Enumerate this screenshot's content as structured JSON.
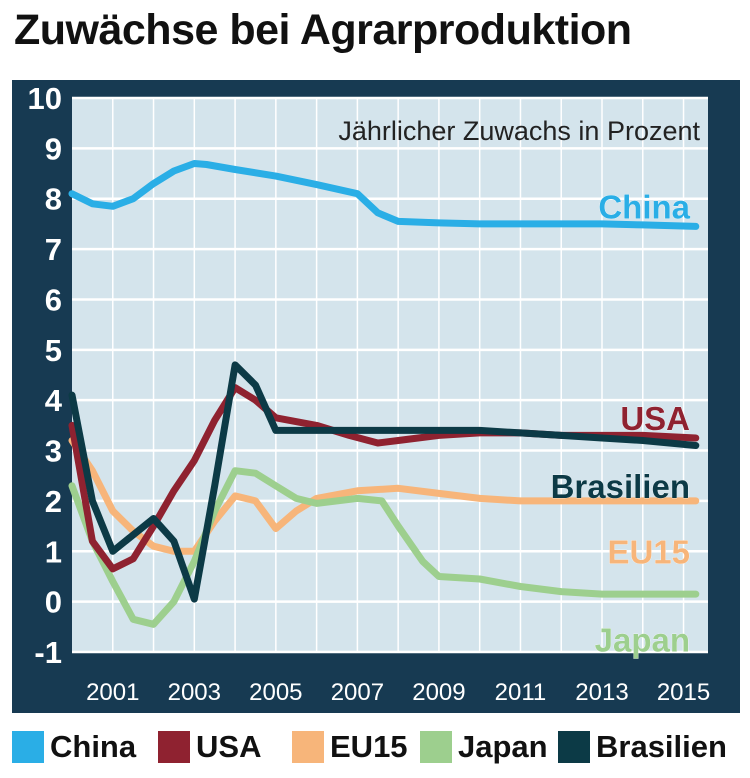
{
  "title": "Zuwächse bei Agrarproduktion",
  "colors": {
    "frame": "#173a52",
    "plot_bg": "#d4e4ec",
    "grid": "#ffffff"
  },
  "chart_data": {
    "type": "line",
    "subtitle": "Jährlicher Zuwachs in Prozent",
    "xlabel": "",
    "ylabel": "",
    "ylim": [
      -1,
      10
    ],
    "xlim": [
      2000,
      2015.6
    ],
    "yticks": [
      "-1",
      "0",
      "1",
      "2",
      "3",
      "4",
      "5",
      "6",
      "7",
      "8",
      "9",
      "10"
    ],
    "xticks": [
      "2001",
      "2003",
      "2005",
      "2007",
      "2009",
      "2011",
      "2013",
      "2015"
    ],
    "grid": true,
    "legend_position": "bottom",
    "series": [
      {
        "name": "China",
        "color": "#2aaee6",
        "x": [
          2000,
          2000.5,
          2001,
          2001.5,
          2002,
          2002.5,
          2003,
          2003.3,
          2004,
          2005,
          2006,
          2007,
          2007.5,
          2008,
          2009,
          2010,
          2011,
          2012,
          2013,
          2014,
          2015.3
        ],
        "y": [
          8.1,
          7.9,
          7.85,
          8.0,
          8.3,
          8.55,
          8.7,
          8.68,
          8.58,
          8.45,
          8.28,
          8.1,
          7.72,
          7.55,
          7.52,
          7.5,
          7.5,
          7.5,
          7.5,
          7.48,
          7.45
        ]
      },
      {
        "name": "USA",
        "color": "#8f2230",
        "x": [
          2000,
          2000.5,
          2001,
          2001.5,
          2002,
          2002.5,
          2003,
          2003.5,
          2004,
          2004.5,
          2005,
          2006,
          2006.8,
          2007.5,
          2008,
          2009,
          2010,
          2011,
          2012,
          2013,
          2014,
          2015.3
        ],
        "y": [
          3.5,
          1.2,
          0.65,
          0.85,
          1.5,
          2.2,
          2.8,
          3.6,
          4.25,
          4.0,
          3.65,
          3.5,
          3.3,
          3.15,
          3.2,
          3.3,
          3.35,
          3.35,
          3.3,
          3.3,
          3.3,
          3.25
        ]
      },
      {
        "name": "EU15",
        "color": "#f7b57a",
        "x": [
          2000,
          2000.5,
          2001,
          2001.5,
          2002,
          2002.5,
          2003,
          2003.5,
          2004,
          2004.5,
          2005,
          2005.5,
          2006,
          2007,
          2008,
          2009,
          2010,
          2011,
          2012,
          2013,
          2014,
          2015.3
        ],
        "y": [
          3.2,
          2.6,
          1.8,
          1.4,
          1.1,
          1.0,
          1.0,
          1.6,
          2.1,
          2.0,
          1.45,
          1.8,
          2.05,
          2.2,
          2.25,
          2.15,
          2.05,
          2.0,
          2.0,
          2.0,
          2.0,
          2.0
        ]
      },
      {
        "name": "Japan",
        "color": "#9dcf8e",
        "x": [
          2000,
          2000.5,
          2001,
          2001.5,
          2002,
          2002.5,
          2003,
          2003.5,
          2004,
          2004.5,
          2005,
          2005.5,
          2006,
          2007,
          2007.6,
          2008,
          2008.6,
          2009,
          2010,
          2011,
          2012,
          2013,
          2014,
          2015.3
        ],
        "y": [
          2.3,
          1.2,
          0.4,
          -0.35,
          -0.45,
          0.0,
          0.8,
          1.8,
          2.6,
          2.55,
          2.3,
          2.05,
          1.95,
          2.05,
          2.0,
          1.5,
          0.8,
          0.5,
          0.45,
          0.3,
          0.2,
          0.15,
          0.15,
          0.15
        ]
      },
      {
        "name": "Brasilien",
        "color": "#0c3a46",
        "x": [
          2000,
          2000.5,
          2001,
          2002,
          2002.5,
          2003,
          2003.5,
          2004,
          2004.5,
          2005,
          2006,
          2007,
          2008,
          2009,
          2010,
          2011,
          2012,
          2013,
          2014,
          2015.3
        ],
        "y": [
          4.1,
          2.0,
          1.0,
          1.65,
          1.2,
          0.05,
          2.3,
          4.7,
          4.3,
          3.4,
          3.4,
          3.4,
          3.4,
          3.4,
          3.4,
          3.35,
          3.3,
          3.25,
          3.2,
          3.1
        ]
      }
    ],
    "annotations": [
      {
        "text": "China",
        "series": "China"
      },
      {
        "text": "USA",
        "series": "USA"
      },
      {
        "text": "Brasilien",
        "series": "Brasilien"
      },
      {
        "text": "EU15",
        "series": "EU15"
      },
      {
        "text": "Japan",
        "series": "Japan"
      }
    ]
  },
  "legend": [
    {
      "label": "China",
      "color": "#2aaee6"
    },
    {
      "label": "USA",
      "color": "#8f2230"
    },
    {
      "label": "EU15",
      "color": "#f7b57a"
    },
    {
      "label": "Japan",
      "color": "#9dcf8e"
    },
    {
      "label": "Brasilien",
      "color": "#0c3a46"
    }
  ]
}
